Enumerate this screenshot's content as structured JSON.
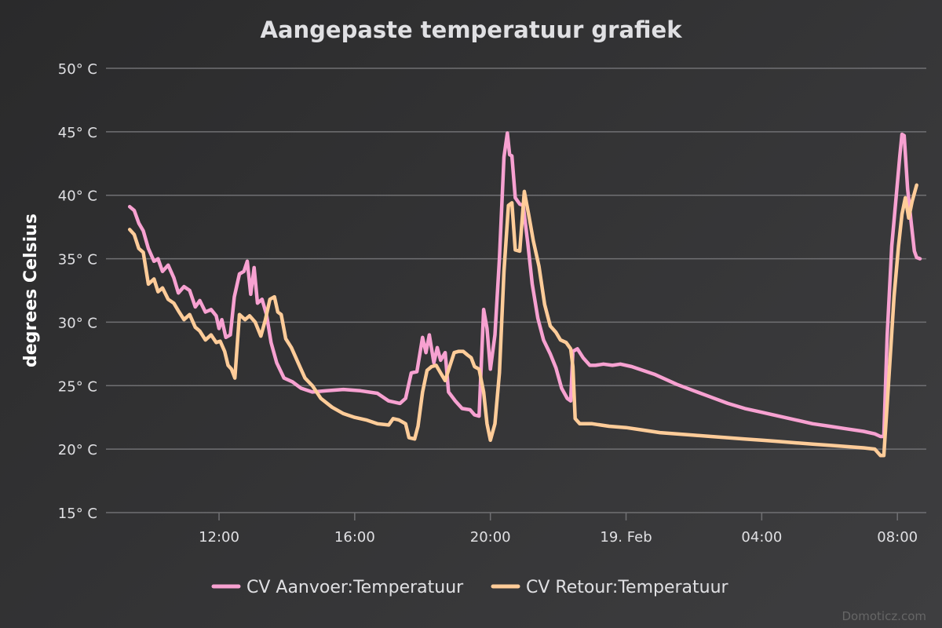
{
  "chart_data": {
    "type": "line",
    "title": "Aangepaste temperatuur grafiek",
    "ylabel": "degrees Celsius",
    "y_unit": "° C",
    "ylim": [
      15,
      50
    ],
    "yticks": [
      15,
      20,
      25,
      30,
      35,
      40,
      45,
      50
    ],
    "ytick_labels": [
      "15° C",
      "20° C",
      "25° C",
      "30° C",
      "35° C",
      "40° C",
      "45° C",
      "50° C"
    ],
    "x_range": [
      "2025-02-18T08:40",
      "2025-02-19T08:40"
    ],
    "xticks": [
      "2025-02-18T12:00",
      "2025-02-18T16:00",
      "2025-02-18T20:00",
      "2025-02-19T00:00",
      "2025-02-19T04:00",
      "2025-02-19T08:00"
    ],
    "xtick_labels": [
      "12:00",
      "16:00",
      "20:00",
      "19. Feb",
      "04:00",
      "08:00"
    ],
    "grid": true,
    "legend_position": "bottom-center",
    "series": [
      {
        "name": "CV Aanvoer:Temperatuur",
        "color": "#f7a1d1",
        "points": [
          [
            "2025-02-18T09:22",
            39.1
          ],
          [
            "2025-02-18T09:30",
            38.8
          ],
          [
            "2025-02-18T09:38",
            37.8
          ],
          [
            "2025-02-18T09:46",
            37.2
          ],
          [
            "2025-02-18T09:55",
            35.8
          ],
          [
            "2025-02-18T10:05",
            34.8
          ],
          [
            "2025-02-18T10:12",
            35.0
          ],
          [
            "2025-02-18T10:20",
            34.0
          ],
          [
            "2025-02-18T10:30",
            34.5
          ],
          [
            "2025-02-18T10:40",
            33.5
          ],
          [
            "2025-02-18T10:48",
            32.3
          ],
          [
            "2025-02-18T10:58",
            32.8
          ],
          [
            "2025-02-18T11:08",
            32.5
          ],
          [
            "2025-02-18T11:18",
            31.2
          ],
          [
            "2025-02-18T11:26",
            31.7
          ],
          [
            "2025-02-18T11:36",
            30.8
          ],
          [
            "2025-02-18T11:46",
            31.0
          ],
          [
            "2025-02-18T11:55",
            30.5
          ],
          [
            "2025-02-18T12:00",
            29.5
          ],
          [
            "2025-02-18T12:05",
            30.2
          ],
          [
            "2025-02-18T12:12",
            28.8
          ],
          [
            "2025-02-18T12:20",
            29.0
          ],
          [
            "2025-02-18T12:27",
            32.0
          ],
          [
            "2025-02-18T12:36",
            33.8
          ],
          [
            "2025-02-18T12:44",
            34.0
          ],
          [
            "2025-02-18T12:50",
            34.8
          ],
          [
            "2025-02-18T12:56",
            32.2
          ],
          [
            "2025-02-18T13:02",
            34.3
          ],
          [
            "2025-02-18T13:08",
            31.5
          ],
          [
            "2025-02-18T13:16",
            31.8
          ],
          [
            "2025-02-18T13:24",
            30.6
          ],
          [
            "2025-02-18T13:32",
            28.4
          ],
          [
            "2025-02-18T13:42",
            26.8
          ],
          [
            "2025-02-18T13:55",
            25.6
          ],
          [
            "2025-02-18T14:10",
            25.3
          ],
          [
            "2025-02-18T14:25",
            24.8
          ],
          [
            "2025-02-18T14:45",
            24.5
          ],
          [
            "2025-02-18T15:10",
            24.6
          ],
          [
            "2025-02-18T15:40",
            24.7
          ],
          [
            "2025-02-18T16:10",
            24.6
          ],
          [
            "2025-02-18T16:40",
            24.4
          ],
          [
            "2025-02-18T17:00",
            23.8
          ],
          [
            "2025-02-18T17:20",
            23.6
          ],
          [
            "2025-02-18T17:30",
            24.0
          ],
          [
            "2025-02-18T17:40",
            26.0
          ],
          [
            "2025-02-18T17:50",
            26.1
          ],
          [
            "2025-02-18T18:00",
            28.8
          ],
          [
            "2025-02-18T18:06",
            27.6
          ],
          [
            "2025-02-18T18:12",
            29.0
          ],
          [
            "2025-02-18T18:20",
            26.8
          ],
          [
            "2025-02-18T18:26",
            28.0
          ],
          [
            "2025-02-18T18:32",
            27.0
          ],
          [
            "2025-02-18T18:40",
            27.6
          ],
          [
            "2025-02-18T18:46",
            24.5
          ],
          [
            "2025-02-18T18:58",
            23.8
          ],
          [
            "2025-02-18T19:10",
            23.2
          ],
          [
            "2025-02-18T19:24",
            23.1
          ],
          [
            "2025-02-18T19:32",
            22.7
          ],
          [
            "2025-02-18T19:40",
            22.6
          ],
          [
            "2025-02-18T19:48",
            31.0
          ],
          [
            "2025-02-18T19:54",
            29.5
          ],
          [
            "2025-02-18T20:00",
            26.3
          ],
          [
            "2025-02-18T20:08",
            29.0
          ],
          [
            "2025-02-18T20:16",
            35.0
          ],
          [
            "2025-02-18T20:24",
            43.0
          ],
          [
            "2025-02-18T20:30",
            44.9
          ],
          [
            "2025-02-18T20:34",
            43.2
          ],
          [
            "2025-02-18T20:38",
            43.1
          ],
          [
            "2025-02-18T20:44",
            39.8
          ],
          [
            "2025-02-18T20:52",
            39.3
          ],
          [
            "2025-02-18T20:58",
            39.2
          ],
          [
            "2025-02-18T21:06",
            36.3
          ],
          [
            "2025-02-18T21:14",
            33.0
          ],
          [
            "2025-02-18T21:24",
            30.3
          ],
          [
            "2025-02-18T21:34",
            28.6
          ],
          [
            "2025-02-18T21:46",
            27.5
          ],
          [
            "2025-02-18T21:56",
            26.4
          ],
          [
            "2025-02-18T22:06",
            24.8
          ],
          [
            "2025-02-18T22:16",
            24.0
          ],
          [
            "2025-02-18T22:22",
            23.8
          ],
          [
            "2025-02-18T22:26",
            27.7
          ],
          [
            "2025-02-18T22:34",
            27.9
          ],
          [
            "2025-02-18T22:44",
            27.2
          ],
          [
            "2025-02-18T22:56",
            26.6
          ],
          [
            "2025-02-18T23:06",
            26.6
          ],
          [
            "2025-02-18T23:20",
            26.7
          ],
          [
            "2025-02-18T23:36",
            26.6
          ],
          [
            "2025-02-18T23:50",
            26.7
          ],
          [
            "2025-02-19T00:10",
            26.5
          ],
          [
            "2025-02-19T00:30",
            26.2
          ],
          [
            "2025-02-19T00:50",
            25.9
          ],
          [
            "2025-02-19T01:10",
            25.5
          ],
          [
            "2025-02-19T01:30",
            25.1
          ],
          [
            "2025-02-19T02:00",
            24.6
          ],
          [
            "2025-02-19T02:30",
            24.1
          ],
          [
            "2025-02-19T03:00",
            23.6
          ],
          [
            "2025-02-19T03:30",
            23.2
          ],
          [
            "2025-02-19T04:00",
            22.9
          ],
          [
            "2025-02-19T04:30",
            22.6
          ],
          [
            "2025-02-19T05:00",
            22.3
          ],
          [
            "2025-02-19T05:30",
            22.0
          ],
          [
            "2025-02-19T06:00",
            21.8
          ],
          [
            "2025-02-19T06:30",
            21.6
          ],
          [
            "2025-02-19T07:00",
            21.4
          ],
          [
            "2025-02-19T07:20",
            21.2
          ],
          [
            "2025-02-19T07:30",
            21.0
          ],
          [
            "2025-02-19T07:36",
            21.0
          ],
          [
            "2025-02-19T07:42",
            29.0
          ],
          [
            "2025-02-19T07:50",
            36.0
          ],
          [
            "2025-02-19T07:58",
            40.0
          ],
          [
            "2025-02-19T08:04",
            43.0
          ],
          [
            "2025-02-19T08:08",
            44.8
          ],
          [
            "2025-02-19T08:12",
            44.7
          ],
          [
            "2025-02-19T08:18",
            40.5
          ],
          [
            "2025-02-19T08:24",
            38.0
          ],
          [
            "2025-02-19T08:30",
            35.6
          ],
          [
            "2025-02-19T08:34",
            35.1
          ],
          [
            "2025-02-19T08:40",
            35.0
          ]
        ]
      },
      {
        "name": "CV Retour:Temperatuur",
        "color": "#ffcc99",
        "points": [
          [
            "2025-02-18T09:22",
            37.3
          ],
          [
            "2025-02-18T09:30",
            36.9
          ],
          [
            "2025-02-18T09:38",
            35.8
          ],
          [
            "2025-02-18T09:46",
            35.5
          ],
          [
            "2025-02-18T09:55",
            33.0
          ],
          [
            "2025-02-18T10:05",
            33.4
          ],
          [
            "2025-02-18T10:12",
            32.4
          ],
          [
            "2025-02-18T10:20",
            32.7
          ],
          [
            "2025-02-18T10:30",
            31.8
          ],
          [
            "2025-02-18T10:40",
            31.5
          ],
          [
            "2025-02-18T10:48",
            30.9
          ],
          [
            "2025-02-18T10:58",
            30.2
          ],
          [
            "2025-02-18T11:08",
            30.6
          ],
          [
            "2025-02-18T11:18",
            29.6
          ],
          [
            "2025-02-18T11:26",
            29.3
          ],
          [
            "2025-02-18T11:36",
            28.6
          ],
          [
            "2025-02-18T11:46",
            29.0
          ],
          [
            "2025-02-18T11:55",
            28.4
          ],
          [
            "2025-02-18T12:02",
            28.5
          ],
          [
            "2025-02-18T12:10",
            27.7
          ],
          [
            "2025-02-18T12:16",
            26.6
          ],
          [
            "2025-02-18T12:22",
            26.3
          ],
          [
            "2025-02-18T12:28",
            25.6
          ],
          [
            "2025-02-18T12:36",
            30.6
          ],
          [
            "2025-02-18T12:46",
            30.2
          ],
          [
            "2025-02-18T12:54",
            30.5
          ],
          [
            "2025-02-18T13:04",
            30.0
          ],
          [
            "2025-02-18T13:14",
            28.9
          ],
          [
            "2025-02-18T13:22",
            30.2
          ],
          [
            "2025-02-18T13:30",
            31.8
          ],
          [
            "2025-02-18T13:38",
            32.0
          ],
          [
            "2025-02-18T13:44",
            30.8
          ],
          [
            "2025-02-18T13:50",
            30.6
          ],
          [
            "2025-02-18T13:58",
            28.7
          ],
          [
            "2025-02-18T14:08",
            28.0
          ],
          [
            "2025-02-18T14:20",
            26.8
          ],
          [
            "2025-02-18T14:32",
            25.6
          ],
          [
            "2025-02-18T14:45",
            25.0
          ],
          [
            "2025-02-18T15:00",
            24.0
          ],
          [
            "2025-02-18T15:20",
            23.3
          ],
          [
            "2025-02-18T15:40",
            22.8
          ],
          [
            "2025-02-18T16:00",
            22.5
          ],
          [
            "2025-02-18T16:20",
            22.3
          ],
          [
            "2025-02-18T16:40",
            22.0
          ],
          [
            "2025-02-18T17:00",
            21.9
          ],
          [
            "2025-02-18T17:08",
            22.4
          ],
          [
            "2025-02-18T17:18",
            22.3
          ],
          [
            "2025-02-18T17:30",
            22.0
          ],
          [
            "2025-02-18T17:36",
            20.9
          ],
          [
            "2025-02-18T17:46",
            20.8
          ],
          [
            "2025-02-18T17:52",
            21.8
          ],
          [
            "2025-02-18T18:00",
            24.5
          ],
          [
            "2025-02-18T18:08",
            26.2
          ],
          [
            "2025-02-18T18:16",
            26.5
          ],
          [
            "2025-02-18T18:24",
            26.6
          ],
          [
            "2025-02-18T18:32",
            26.0
          ],
          [
            "2025-02-18T18:40",
            25.4
          ],
          [
            "2025-02-18T18:48",
            26.5
          ],
          [
            "2025-02-18T18:56",
            27.6
          ],
          [
            "2025-02-18T19:04",
            27.7
          ],
          [
            "2025-02-18T19:12",
            27.7
          ],
          [
            "2025-02-18T19:20",
            27.4
          ],
          [
            "2025-02-18T19:26",
            27.2
          ],
          [
            "2025-02-18T19:32",
            26.5
          ],
          [
            "2025-02-18T19:40",
            26.3
          ],
          [
            "2025-02-18T19:48",
            24.5
          ],
          [
            "2025-02-18T19:54",
            22.0
          ],
          [
            "2025-02-18T20:00",
            20.7
          ],
          [
            "2025-02-18T20:08",
            22.0
          ],
          [
            "2025-02-18T20:16",
            26.0
          ],
          [
            "2025-02-18T20:24",
            34.0
          ],
          [
            "2025-02-18T20:32",
            39.2
          ],
          [
            "2025-02-18T20:38",
            39.4
          ],
          [
            "2025-02-18T20:44",
            35.7
          ],
          [
            "2025-02-18T20:52",
            35.6
          ],
          [
            "2025-02-18T21:00",
            40.3
          ],
          [
            "2025-02-18T21:08",
            38.4
          ],
          [
            "2025-02-18T21:16",
            36.4
          ],
          [
            "2025-02-18T21:26",
            34.4
          ],
          [
            "2025-02-18T21:36",
            31.4
          ],
          [
            "2025-02-18T21:46",
            29.7
          ],
          [
            "2025-02-18T21:56",
            29.2
          ],
          [
            "2025-02-18T22:04",
            28.6
          ],
          [
            "2025-02-18T22:14",
            28.4
          ],
          [
            "2025-02-18T22:22",
            27.9
          ],
          [
            "2025-02-18T22:26",
            26.5
          ],
          [
            "2025-02-18T22:30",
            22.4
          ],
          [
            "2025-02-18T22:38",
            22.0
          ],
          [
            "2025-02-18T23:00",
            22.0
          ],
          [
            "2025-02-18T23:30",
            21.8
          ],
          [
            "2025-02-19T00:00",
            21.7
          ],
          [
            "2025-02-19T00:30",
            21.5
          ],
          [
            "2025-02-19T01:00",
            21.3
          ],
          [
            "2025-02-19T01:30",
            21.2
          ],
          [
            "2025-02-19T02:00",
            21.1
          ],
          [
            "2025-02-19T02:30",
            21.0
          ],
          [
            "2025-02-19T03:00",
            20.9
          ],
          [
            "2025-02-19T03:30",
            20.8
          ],
          [
            "2025-02-19T04:00",
            20.7
          ],
          [
            "2025-02-19T04:30",
            20.6
          ],
          [
            "2025-02-19T05:00",
            20.5
          ],
          [
            "2025-02-19T05:30",
            20.4
          ],
          [
            "2025-02-19T06:00",
            20.3
          ],
          [
            "2025-02-19T06:30",
            20.2
          ],
          [
            "2025-02-19T07:00",
            20.1
          ],
          [
            "2025-02-19T07:20",
            20.0
          ],
          [
            "2025-02-19T07:30",
            19.5
          ],
          [
            "2025-02-19T07:36",
            19.5
          ],
          [
            "2025-02-19T07:44",
            25.0
          ],
          [
            "2025-02-19T07:54",
            32.0
          ],
          [
            "2025-02-19T08:02",
            36.0
          ],
          [
            "2025-02-19T08:08",
            38.5
          ],
          [
            "2025-02-19T08:14",
            39.8
          ],
          [
            "2025-02-19T08:20",
            38.2
          ],
          [
            "2025-02-19T08:26",
            39.5
          ],
          [
            "2025-02-19T08:34",
            40.8
          ]
        ]
      }
    ]
  },
  "credits": "Domoticz.com"
}
